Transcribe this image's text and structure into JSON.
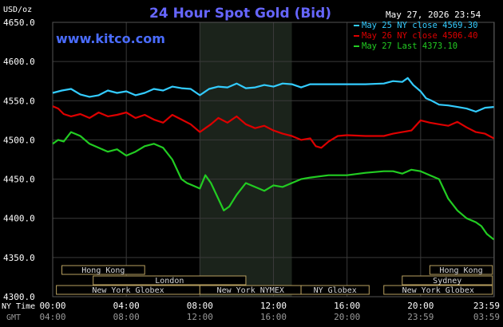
{
  "chart_data": {
    "type": "line",
    "title": "24 Hour Spot Gold (Bid)",
    "watermark": "www.kitco.com",
    "timestamp": "May 27, 2026 23:54",
    "ylabel": "USD/oz",
    "ylim": [
      4300,
      4650
    ],
    "y_ticks": [
      "4650.0",
      "4600.0",
      "4550.0",
      "4500.0",
      "4450.0",
      "4400.0",
      "4350.0",
      "4300.0"
    ],
    "y_tick_values": [
      4650,
      4600,
      4550,
      4500,
      4450,
      4400,
      4350,
      4300
    ],
    "x_range_hours": [
      0,
      24
    ],
    "x_row_ny_label": "NY Time",
    "x_row_gmt_label": "GMT",
    "x_ticks_ny": [
      "00:00",
      "04:00",
      "08:00",
      "12:00",
      "16:00",
      "20:00",
      "23:59"
    ],
    "x_ticks_gmt": [
      "04:00",
      "08:00",
      "12:00",
      "16:00",
      "20:00",
      "23:59",
      "03:59"
    ],
    "x_tick_hours": [
      0,
      4,
      8,
      12,
      16,
      20,
      23.98
    ],
    "highlight_band_hours": [
      8,
      13
    ],
    "grid": true,
    "legend_position": "top-right",
    "legend": [
      {
        "text": "May 25 NY close 4569.30",
        "color": "#33ccff"
      },
      {
        "text": "May 26 NY close 4506.40",
        "color": "#dd0000"
      },
      {
        "text": "May 27 Last 4373.10",
        "color": "#22cc22"
      }
    ],
    "sessions": [
      {
        "label": "Hong Kong",
        "start": 0.5,
        "end": 5
      },
      {
        "label": "London",
        "start": 2.2,
        "end": 10.5
      },
      {
        "label": "New York Globex",
        "start": 0.2,
        "end": 8
      },
      {
        "label": "New York NYMEX",
        "start": 8,
        "end": 13.5
      },
      {
        "label": "NY Globex",
        "start": 13.5,
        "end": 17.2
      },
      {
        "label": "Hong Kong",
        "start": 20.5,
        "end": 23.9
      },
      {
        "label": "Sydney",
        "start": 19,
        "end": 23.9
      },
      {
        "label": "New York Globex",
        "start": 18,
        "end": 23.9
      }
    ],
    "series": [
      {
        "name": "May 25 NY close 4569.30",
        "color": "#33ccff",
        "x": [
          0,
          0.5,
          1,
          1.5,
          2,
          2.5,
          3,
          3.5,
          4,
          4.5,
          5,
          5.5,
          6,
          6.5,
          7,
          7.5,
          8,
          8.5,
          9,
          9.5,
          10,
          10.5,
          11,
          11.5,
          12,
          12.5,
          13,
          13.5,
          14,
          15,
          16,
          17,
          18,
          18.5,
          19,
          19.3,
          19.6,
          20,
          20.3,
          20.6,
          21,
          21.5,
          22,
          22.5,
          23,
          23.5,
          23.98
        ],
        "values": [
          4560,
          4563,
          4565,
          4558,
          4555,
          4557,
          4563,
          4560,
          4562,
          4557,
          4560,
          4565,
          4563,
          4568,
          4566,
          4565,
          4557,
          4565,
          4568,
          4567,
          4572,
          4566,
          4567,
          4570,
          4568,
          4572,
          4571,
          4567,
          4571,
          4571,
          4571,
          4571,
          4572,
          4575,
          4574,
          4579,
          4570,
          4562,
          4553,
          4550,
          4545,
          4544,
          4542,
          4540,
          4536,
          4541,
          4542
        ]
      },
      {
        "name": "May 26 NY close 4506.40",
        "color": "#dd0000",
        "x": [
          0,
          0.3,
          0.6,
          1,
          1.5,
          2,
          2.5,
          3,
          3.5,
          4,
          4.5,
          5,
          5.5,
          6,
          6.5,
          7,
          7.5,
          8,
          8.3,
          8.6,
          9,
          9.5,
          10,
          10.5,
          11,
          11.5,
          12,
          12.5,
          13,
          13.5,
          14,
          14.3,
          14.6,
          15,
          15.5,
          16,
          17,
          18,
          18.5,
          19,
          19.5,
          20,
          20.5,
          21,
          21.5,
          22,
          22.5,
          23,
          23.5,
          23.98
        ],
        "values": [
          4543,
          4540,
          4533,
          4530,
          4533,
          4528,
          4535,
          4530,
          4532,
          4535,
          4528,
          4532,
          4526,
          4522,
          4532,
          4526,
          4520,
          4510,
          4515,
          4520,
          4528,
          4522,
          4530,
          4520,
          4515,
          4518,
          4512,
          4508,
          4505,
          4500,
          4502,
          4492,
          4490,
          4498,
          4505,
          4506,
          4505,
          4505,
          4508,
          4510,
          4512,
          4525,
          4522,
          4520,
          4518,
          4523,
          4516,
          4510,
          4508,
          4502
        ]
      },
      {
        "name": "May 27 Last 4373.10",
        "color": "#22cc22",
        "x": [
          0,
          0.3,
          0.6,
          1,
          1.5,
          2,
          2.5,
          3,
          3.5,
          4,
          4.5,
          5,
          5.5,
          6,
          6.5,
          7,
          7.3,
          7.6,
          8,
          8.3,
          8.6,
          9,
          9.3,
          9.6,
          10,
          10.5,
          11,
          11.5,
          12,
          12.5,
          13,
          13.5,
          14,
          15,
          16,
          17,
          18,
          18.5,
          19,
          19.5,
          20,
          20.5,
          21,
          21.5,
          22,
          22.5,
          23,
          23.3,
          23.6,
          23.98
        ],
        "values": [
          4495,
          4500,
          4498,
          4510,
          4505,
          4495,
          4490,
          4485,
          4488,
          4480,
          4485,
          4492,
          4495,
          4490,
          4475,
          4450,
          4445,
          4442,
          4438,
          4455,
          4445,
          4425,
          4410,
          4415,
          4430,
          4445,
          4440,
          4435,
          4442,
          4440,
          4445,
          4450,
          4452,
          4455,
          4455,
          4458,
          4460,
          4460,
          4457,
          4462,
          4460,
          4455,
          4450,
          4425,
          4410,
          4400,
          4395,
          4390,
          4380,
          4373
        ]
      }
    ]
  }
}
